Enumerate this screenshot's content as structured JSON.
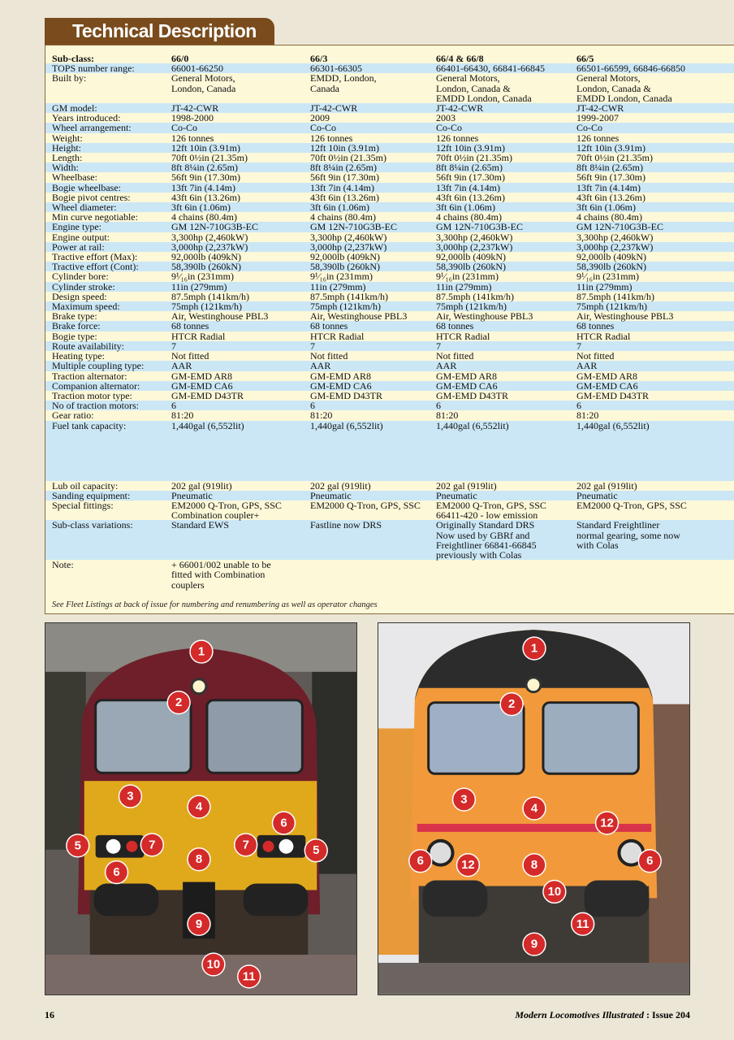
{
  "header": {
    "title": "Technical Description"
  },
  "table": {
    "header": [
      "Sub-class:",
      "66/0",
      "66/3",
      "66/4 & 66/8",
      "66/5"
    ],
    "rows": [
      [
        "TOPS number range:",
        "66001-66250",
        "66301-66305",
        "66401-66430, 66841-66845",
        "66501-66599, 66846-66850"
      ],
      [
        "Built by:",
        "General Motors,\nLondon, Canada",
        "EMDD, London,\nCanada",
        "General Motors,\nLondon, Canada &\nEMDD London, Canada",
        "General Motors,\nLondon, Canada &\nEMDD London, Canada"
      ],
      [
        "GM model:",
        "JT-42-CWR",
        "JT-42-CWR",
        "JT-42-CWR",
        "JT-42-CWR"
      ],
      [
        "Years introduced:",
        "1998-2000",
        "2009",
        "2003",
        "1999-2007"
      ],
      [
        "Wheel arrangement:",
        "Co-Co",
        "Co-Co",
        "Co-Co",
        "Co-Co"
      ],
      [
        "Weight:",
        "126 tonnes",
        "126 tonnes",
        "126 tonnes",
        "126 tonnes"
      ],
      [
        "Height:",
        "12ft 10in (3.91m)",
        "12ft 10in (3.91m)",
        "12ft 10in (3.91m)",
        "12ft 10in (3.91m)"
      ],
      [
        "Length:",
        "70ft 0½in (21.35m)",
        "70ft 0½in (21.35m)",
        "70ft 0½in (21.35m)",
        "70ft 0½in (21.35m)"
      ],
      [
        "Width:",
        "8ft 8¼in  (2.65m)",
        "8ft 8¼in  (2.65m)",
        "8ft 8¼in  (2.65m)",
        "8ft 8¼in  (2.65m)"
      ],
      [
        "Wheelbase:",
        "56ft 9in (17.30m)",
        "56ft 9in (17.30m)",
        "56ft 9in (17.30m)",
        "56ft 9in (17.30m)"
      ],
      [
        "Bogie wheelbase:",
        "13ft 7in (4.14m)",
        "13ft 7in (4.14m)",
        "13ft 7in (4.14m)",
        "13ft 7in (4.14m)"
      ],
      [
        "Bogie pivot centres:",
        "43ft 6in (13.26m)",
        "43ft 6in (13.26m)",
        "43ft 6in (13.26m)",
        "43ft 6in (13.26m)"
      ],
      [
        "Wheel diameter:",
        "3ft 6in (1.06m)",
        "3ft 6in (1.06m)",
        "3ft 6in (1.06m)",
        "3ft 6in (1.06m)"
      ],
      [
        "Min curve negotiable:",
        "4 chains (80.4m)",
        "4 chains (80.4m)",
        "4 chains (80.4m)",
        "4 chains (80.4m)"
      ],
      [
        "Engine type:",
        "GM 12N-710G3B-EC",
        "GM 12N-710G3B-EC",
        "GM 12N-710G3B-EC",
        "GM 12N-710G3B-EC"
      ],
      [
        "Engine output:",
        "3,300hp (2,460kW)",
        "3,300hp (2,460kW)",
        "3,300hp (2,460kW)",
        "3,300hp (2,460kW)"
      ],
      [
        "Power at rail:",
        "3,000hp (2,237kW)",
        "3,000hp (2,237kW)",
        "3,000hp (2,237kW)",
        "3,000hp (2,237kW)"
      ],
      [
        "Tractive effort (Max):",
        "92,000lb (409kN)",
        "92,000lb (409kN)",
        "92,000lb (409kN)",
        "92,000lb (409kN)"
      ],
      [
        "Tractive effort (Cont):",
        "58,390lb (260kN)",
        "58,390lb (260kN)",
        "58,390lb (260kN)",
        "58,390lb (260kN)"
      ],
      [
        "Cylinder bore:",
        "9¹⁄₁₆in (231mm)",
        "9¹⁄₁₆in (231mm)",
        "9¹⁄₁₆in (231mm)",
        "9¹⁄₁₆in (231mm)"
      ],
      [
        "Cylinder stroke:",
        "11in (279mm)",
        "11in (279mm)",
        "11in (279mm)",
        "11in (279mm)"
      ],
      [
        "Design speed:",
        "87.5mph (141km/h)",
        "87.5mph (141km/h)",
        "87.5mph (141km/h)",
        "87.5mph (141km/h)"
      ],
      [
        "Maximum speed:",
        "75mph (121km/h)",
        "75mph (121km/h)",
        "75mph (121km/h)",
        "75mph (121km/h)"
      ],
      [
        "Brake type:",
        "Air, Westinghouse PBL3",
        "Air, Westinghouse PBL3",
        "Air, Westinghouse PBL3",
        "Air, Westinghouse PBL3"
      ],
      [
        "Brake force:",
        "68 tonnes",
        "68 tonnes",
        "68 tonnes",
        "68 tonnes"
      ],
      [
        "Bogie type:",
        "HTCR Radial",
        "HTCR Radial",
        "HTCR Radial",
        "HTCR Radial"
      ],
      [
        "Route availability:",
        "7",
        "7",
        "7",
        "7"
      ],
      [
        "Heating type:",
        "Not fitted",
        "Not fitted",
        "Not fitted",
        "Not fitted"
      ],
      [
        "Multiple coupling type:",
        "AAR",
        "AAR",
        "AAR",
        "AAR"
      ],
      [
        "Traction alternator:",
        "GM-EMD AR8",
        "GM-EMD AR8",
        "GM-EMD AR8",
        "GM-EMD AR8"
      ],
      [
        "Companion alternator:",
        "GM-EMD CA6",
        "GM-EMD CA6",
        "GM-EMD CA6",
        "GM-EMD CA6"
      ],
      [
        "Traction motor type:",
        "GM-EMD D43TR",
        "GM-EMD D43TR",
        "GM-EMD D43TR",
        "GM-EMD D43TR"
      ],
      [
        "No of traction motors:",
        "6",
        "6",
        "6",
        "6"
      ],
      [
        "Gear ratio:",
        "81:20",
        "81:20",
        "81:20",
        "81:20"
      ],
      [
        "Fuel tank capacity:",
        "1,440gal (6,552lit)",
        "1,440gal (6,552lit)",
        "1,440gal (6,552lit)",
        "1,440gal (6,552lit)"
      ],
      [
        "Lub oil capacity:",
        "202 gal (919lit)",
        "202 gal (919lit)",
        "202 gal (919lit)",
        "202 gal (919lit)"
      ],
      [
        "Sanding equipment:",
        "Pneumatic",
        "Pneumatic",
        "Pneumatic",
        "Pneumatic"
      ],
      [
        "Special fittings:",
        "EM2000 Q-Tron, GPS, SSC\nCombination coupler+",
        "EM2000 Q-Tron, GPS, SSC",
        "EM2000 Q-Tron, GPS, SSC\n66411-420 - low emission",
        "EM2000 Q-Tron, GPS, SSC"
      ],
      [
        "Sub-class variations:",
        "Standard EWS",
        "Fastline now DRS",
        "Originally Standard DRS\nNow used by GBRf and\nFreightliner 66841-66845\npreviously with Colas",
        "Standard Freightliner\nnormal gearing, some now\nwith Colas"
      ],
      [
        "Note:",
        "+ 66001/002 unable to be\nfitted with Combination\ncouplers"
      ]
    ],
    "footnote": "See Fleet Listings at back of issue for numbering and renumbering as well as operator changes"
  },
  "photos": [
    {
      "badges": [
        "1",
        "2",
        "3",
        "4",
        "5",
        "7",
        "6",
        "8",
        "7",
        "6",
        "5",
        "9",
        "10",
        "11"
      ]
    },
    {
      "badges": [
        "1",
        "2",
        "3",
        "4",
        "12",
        "6",
        "12",
        "8",
        "6",
        "10",
        "11",
        "9"
      ]
    }
  ],
  "footer": {
    "page_number": "16",
    "publication": "Modern Locomotives Illustrated",
    "issue": ": Issue 204"
  }
}
